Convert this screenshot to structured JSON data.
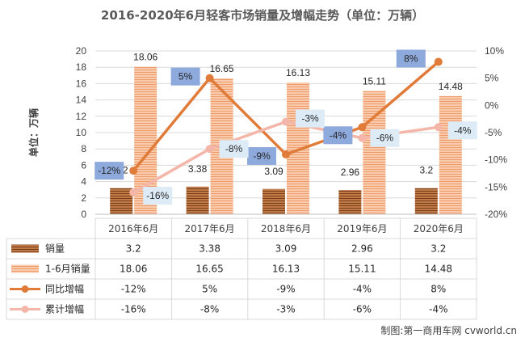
{
  "title": "2016-2020年6月轻客市场销量及增幅走势（单位：万辆）",
  "source": "制图:第一商用车网 cvworld.cn",
  "colors": {
    "sales": "#9C5A2E",
    "h1sales": "#F4B183",
    "yoy": "#E07B39",
    "cumulative": "#F4B6A8",
    "badge_dark": "#8EA9DB",
    "badge_light": "#DDEBF7"
  },
  "chart_data": {
    "type": "bar",
    "categories": [
      "2016年6月",
      "2017年6月",
      "2018年6月",
      "2019年6月",
      "2020年6月"
    ],
    "ylabel": "单位：万辆",
    "ylim": [
      0,
      20
    ],
    "yticks": [
      0,
      2,
      4,
      6,
      8,
      10,
      12,
      14,
      16,
      18,
      20
    ],
    "y2lim": [
      -20,
      10
    ],
    "y2ticks": [
      "10%",
      "5%",
      "0%",
      "-5%",
      "-10%",
      "-15%",
      "-20%"
    ],
    "y2tick_values": [
      10,
      5,
      0,
      -5,
      -10,
      -15,
      -20
    ],
    "legend_position": "bottom-table",
    "series": [
      {
        "name": "销量",
        "kind": "bar",
        "axis": "left",
        "values": [
          3.2,
          3.38,
          3.09,
          2.96,
          3.2
        ],
        "labels": [
          "3.2",
          "3.38",
          "3.09",
          "2.96",
          "3.2"
        ]
      },
      {
        "name": "1-6月销量",
        "kind": "bar",
        "axis": "left",
        "values": [
          18.06,
          16.65,
          16.13,
          15.11,
          14.48
        ],
        "labels": [
          "18.06",
          "16.65",
          "16.13",
          "15.11",
          "14.48"
        ]
      },
      {
        "name": "同比增幅",
        "kind": "line",
        "axis": "right",
        "values": [
          -12,
          5,
          -9,
          -4,
          8
        ],
        "labels": [
          "-12%",
          "5%",
          "-9%",
          "-4%",
          "8%"
        ]
      },
      {
        "name": "累计增幅",
        "kind": "line",
        "axis": "right",
        "values": [
          -16,
          -8,
          -3,
          -6,
          -4
        ],
        "labels": [
          "-16%",
          "-8%",
          "-3%",
          "-6%",
          "-4%"
        ]
      }
    ]
  }
}
